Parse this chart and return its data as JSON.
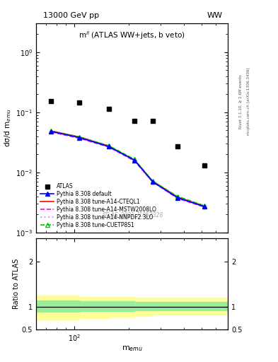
{
  "title_top": "13000 GeV pp",
  "title_right": "WW",
  "subplot_title": "m$^{ll}$ (ATLAS WW+jets, b veto)",
  "watermark": "ATLAS_2021_I1852328",
  "right_label_top": "Rivet 3.1.10, ≥ 2.6M events",
  "right_label_bot": "mcplots.cern.ch [arXiv:1306.3436]",
  "ylabel_main": "dσ/d m$_{emu}$",
  "ylabel_ratio": "Ratio to ATLAS",
  "xlabel": "m$_{emu}$",
  "xlim": [
    62,
    700
  ],
  "ylim_main": [
    0.001,
    3.0
  ],
  "ylim_ratio": [
    0.5,
    2.5
  ],
  "atlas_x": [
    75,
    107,
    155,
    215,
    270,
    370,
    520
  ],
  "atlas_y": [
    0.155,
    0.145,
    0.115,
    0.072,
    0.072,
    0.027,
    0.013
  ],
  "mc_x": [
    75,
    107,
    155,
    215,
    270,
    370,
    520
  ],
  "mc_y_default": [
    0.048,
    0.038,
    0.027,
    0.016,
    0.007,
    0.0038,
    0.0027
  ],
  "mc_y_cteql1": [
    0.049,
    0.039,
    0.0275,
    0.016,
    0.0072,
    0.0039,
    0.00275
  ],
  "mc_y_mstw": [
    0.047,
    0.037,
    0.0265,
    0.0155,
    0.007,
    0.0037,
    0.00265
  ],
  "mc_y_nnpdf": [
    0.048,
    0.038,
    0.027,
    0.016,
    0.007,
    0.0038,
    0.0027
  ],
  "mc_y_cuetp8s1": [
    0.049,
    0.039,
    0.028,
    0.0165,
    0.0072,
    0.004,
    0.0028
  ],
  "ratio_x": [
    62,
    107,
    155,
    215,
    270,
    370,
    520,
    700
  ],
  "ratio_green_upper": [
    1.13,
    1.12,
    1.12,
    1.1,
    1.1,
    1.1,
    1.1,
    1.1
  ],
  "ratio_green_lower": [
    0.88,
    0.9,
    0.9,
    0.92,
    0.92,
    0.92,
    0.92,
    0.92
  ],
  "ratio_yellow_upper": [
    1.25,
    1.22,
    1.22,
    1.2,
    1.2,
    1.2,
    1.2,
    1.2
  ],
  "ratio_yellow_lower": [
    0.72,
    0.75,
    0.78,
    0.8,
    0.82,
    0.82,
    0.82,
    0.82
  ],
  "color_default": "#0000ff",
  "color_cteql1": "#ff0000",
  "color_mstw": "#ff00ff",
  "color_nnpdf": "#ff88ff",
  "color_cuetp8s1": "#00cc00",
  "legend_labels": [
    "ATLAS",
    "Pythia 8.308 default",
    "Pythia 8.308 tune-A14-CTEQL1",
    "Pythia 8.308 tune-A14-MSTW2008LO",
    "Pythia 8.308 tune-A14-NNPDF2.3LO",
    "Pythia 8.308 tune-CUETP8S1"
  ]
}
